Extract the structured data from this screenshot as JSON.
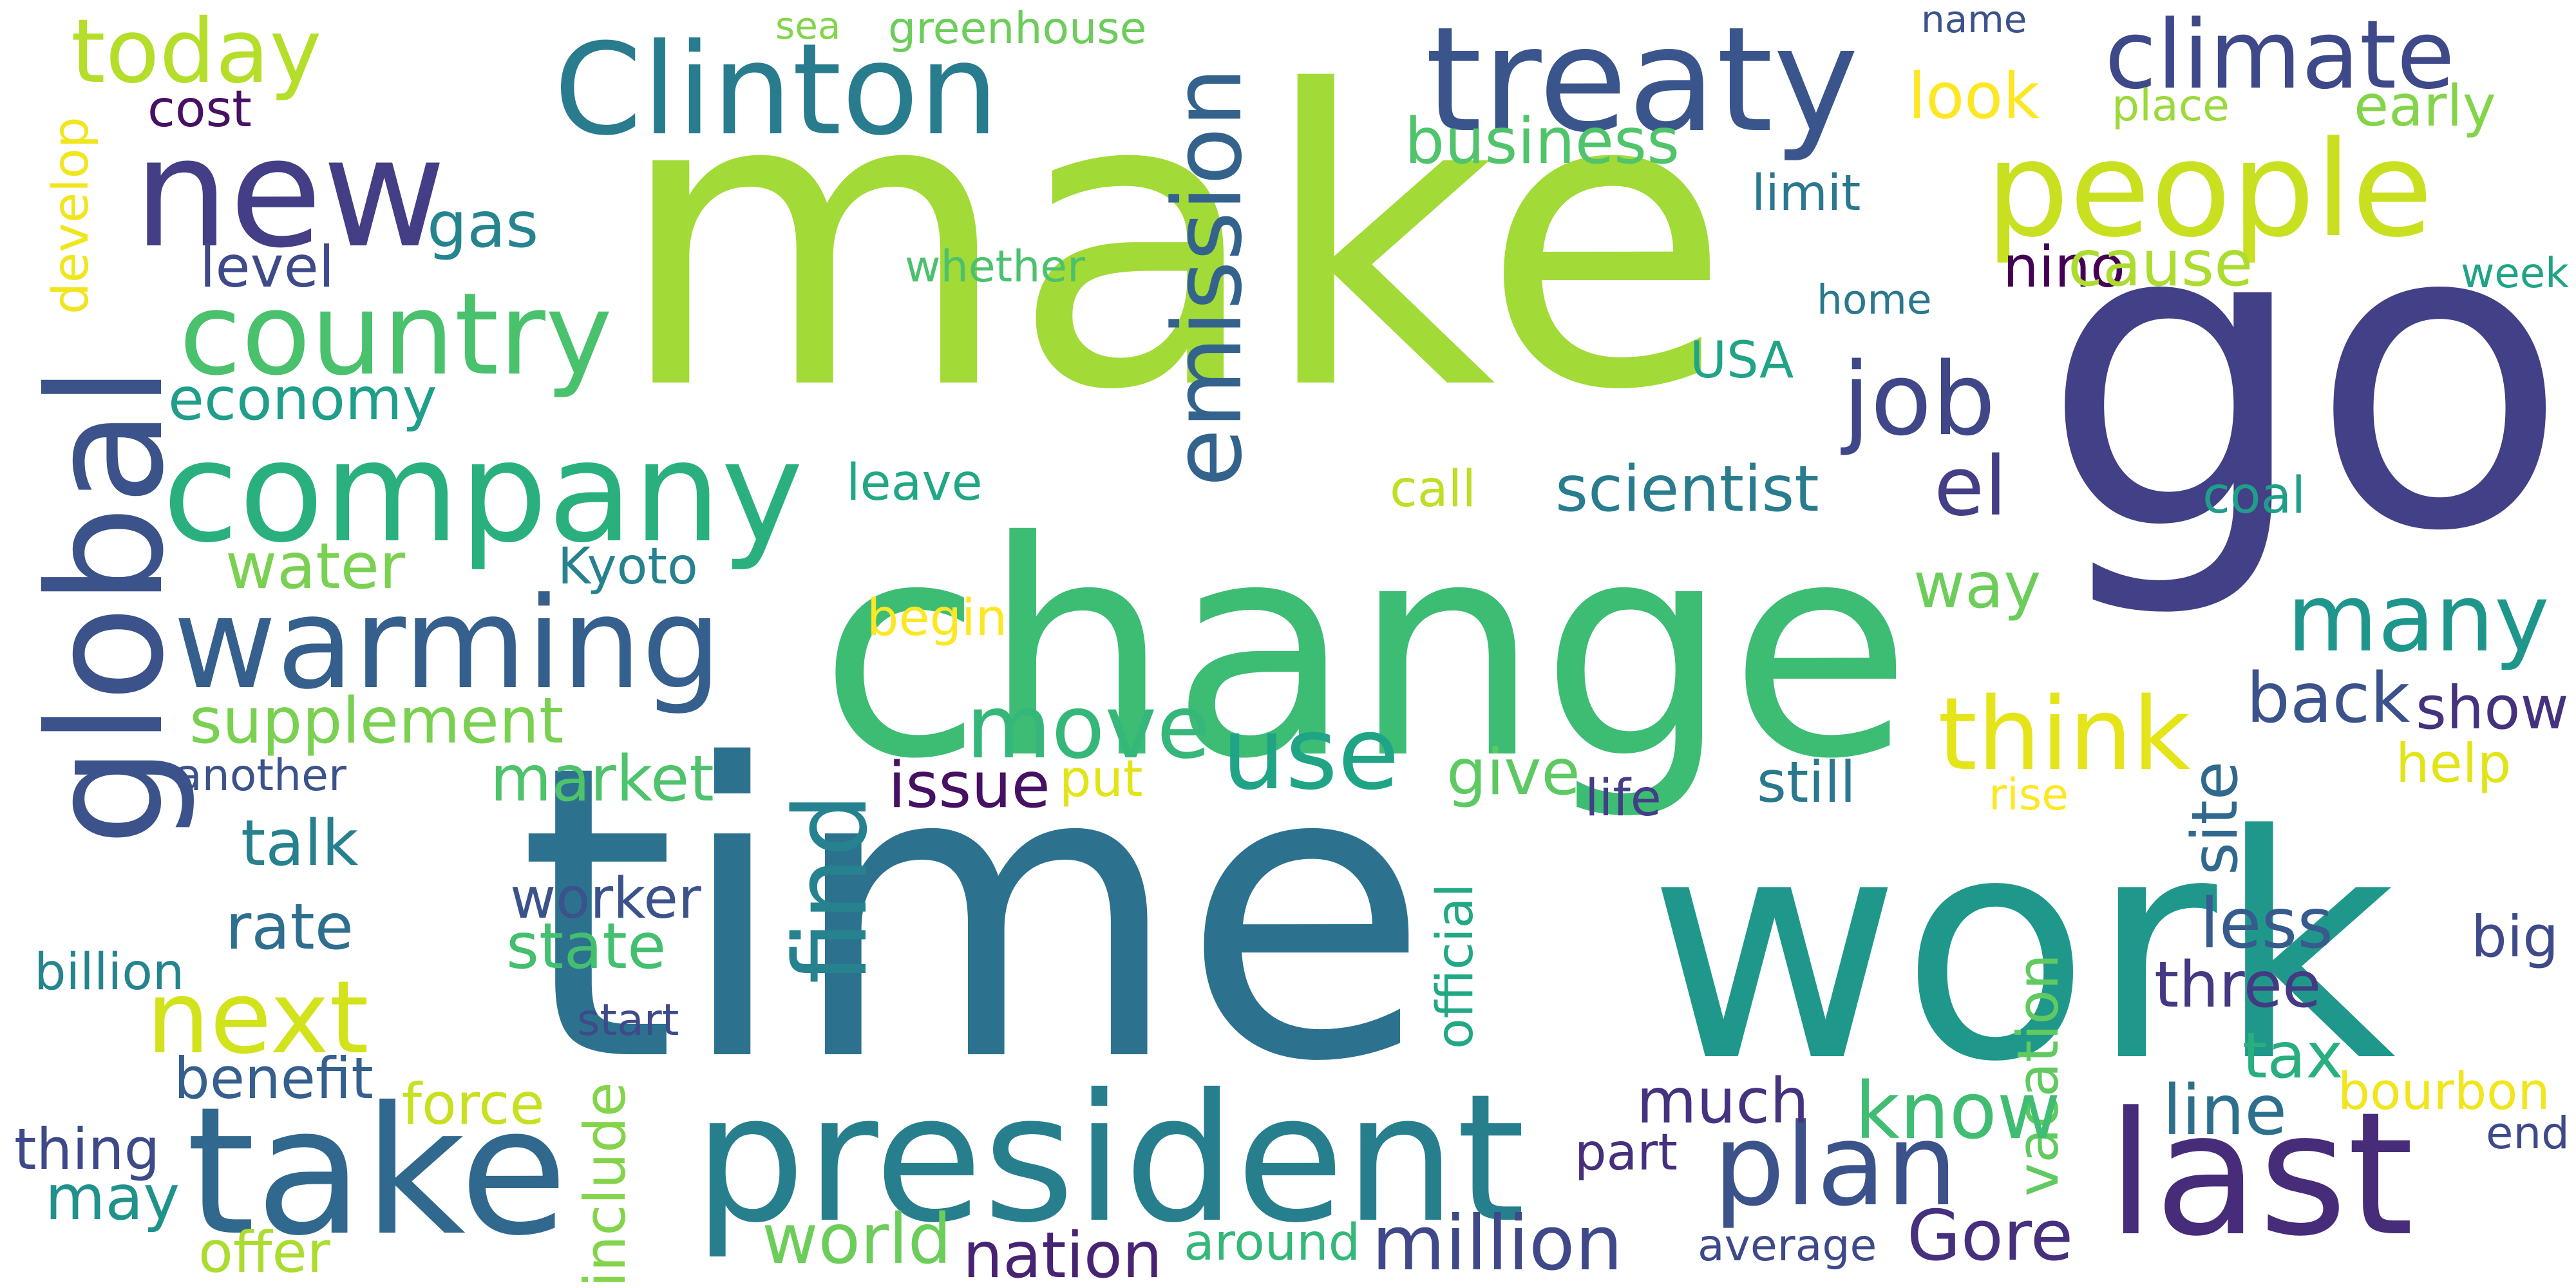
{
  "words": [
    {
      "text": "make",
      "color": "#a2da37"
    },
    {
      "text": "go",
      "color": "#424086"
    },
    {
      "text": "time",
      "color": "#2c728e"
    },
    {
      "text": "work",
      "color": "#1f988b"
    },
    {
      "text": "change",
      "color": "#3dbc74"
    },
    {
      "text": "president",
      "color": "#277f8e"
    },
    {
      "text": "treaty",
      "color": "#39558c"
    },
    {
      "text": "Clinton",
      "color": "#287c8e"
    },
    {
      "text": "new",
      "color": "#433e85"
    },
    {
      "text": "global",
      "color": "#3b528b"
    },
    {
      "text": "take",
      "color": "#31688e"
    },
    {
      "text": "last",
      "color": "#472c7a"
    },
    {
      "text": "people",
      "color": "#c8e020"
    },
    {
      "text": "company",
      "color": "#2ab07f"
    },
    {
      "text": "climate",
      "color": "#3e4989"
    },
    {
      "text": "warming",
      "color": "#355f8d"
    },
    {
      "text": "emission",
      "color": "#33638d"
    },
    {
      "text": "country",
      "color": "#4ac16d"
    },
    {
      "text": "today",
      "color": "#b5de2b"
    },
    {
      "text": "find",
      "color": "#26828e"
    },
    {
      "text": "think",
      "color": "#e5e419"
    },
    {
      "text": "next",
      "color": "#d2e21b"
    },
    {
      "text": "plan",
      "color": "#3b528b"
    },
    {
      "text": "use",
      "color": "#20a486"
    },
    {
      "text": "move",
      "color": "#35b779"
    },
    {
      "text": "job",
      "color": "#3f4788"
    },
    {
      "text": "el",
      "color": "#433e85"
    },
    {
      "text": "many",
      "color": "#1f968b"
    },
    {
      "text": "business",
      "color": "#50c46a"
    },
    {
      "text": "vacation",
      "color": "#60ca60"
    },
    {
      "text": "much",
      "color": "#46337f"
    },
    {
      "text": "million",
      "color": "#3f4889"
    },
    {
      "text": "nation",
      "color": "#482374"
    },
    {
      "text": "Gore",
      "color": "#46307e"
    },
    {
      "text": "world",
      "color": "#6ccd5a"
    },
    {
      "text": "know",
      "color": "#40bd72"
    },
    {
      "text": "line",
      "color": "#2d708e"
    },
    {
      "text": "tax",
      "color": "#29af7f"
    },
    {
      "text": "three",
      "color": "#443983"
    },
    {
      "text": "less",
      "color": "#375b8d"
    },
    {
      "text": "back",
      "color": "#3b528b"
    },
    {
      "text": "show",
      "color": "#46317e"
    },
    {
      "text": "nino",
      "color": "#440154"
    },
    {
      "text": "cause",
      "color": "#addc30"
    },
    {
      "text": "look",
      "color": "#fde725"
    },
    {
      "text": "level",
      "color": "#3e4a89"
    },
    {
      "text": "gas",
      "color": "#25848e"
    },
    {
      "text": "economy",
      "color": "#1f9e89"
    },
    {
      "text": "supplement",
      "color": "#7ad151"
    },
    {
      "text": "market",
      "color": "#4ec36b"
    },
    {
      "text": "issue",
      "color": "#471063"
    },
    {
      "text": "give",
      "color": "#5ec962"
    },
    {
      "text": "still",
      "color": "#2a788e"
    },
    {
      "text": "site",
      "color": "#31688e"
    },
    {
      "text": "state",
      "color": "#44bf70"
    },
    {
      "text": "rate",
      "color": "#2e6e8e"
    },
    {
      "text": "talk",
      "color": "#27808e"
    },
    {
      "text": "scientist",
      "color": "#287c8e"
    },
    {
      "text": "call",
      "color": "#bddf26"
    },
    {
      "text": "leave",
      "color": "#22a785"
    },
    {
      "text": "water",
      "color": "#7ad151"
    },
    {
      "text": "way",
      "color": "#6ccd5a"
    },
    {
      "text": "official",
      "color": "#22a884"
    },
    {
      "text": "include",
      "color": "#84d44b"
    },
    {
      "text": "may",
      "color": "#21918c"
    },
    {
      "text": "benefit",
      "color": "#355f8d"
    },
    {
      "text": "thing",
      "color": "#3e4989"
    },
    {
      "text": "billion",
      "color": "#25858e"
    },
    {
      "text": "start",
      "color": "#3e4a89"
    },
    {
      "text": "worker",
      "color": "#3b528b"
    },
    {
      "text": "another",
      "color": "#3b528b"
    },
    {
      "text": "put",
      "color": "#e2e418"
    },
    {
      "text": "life",
      "color": "#433e85"
    },
    {
      "text": "rise",
      "color": "#fde725"
    },
    {
      "text": "help",
      "color": "#e2e418"
    },
    {
      "text": "big",
      "color": "#3e4a89"
    },
    {
      "text": "bourbon",
      "color": "#f1e51d"
    },
    {
      "text": "end",
      "color": "#3e4a89"
    },
    {
      "text": "part",
      "color": "#46307e"
    },
    {
      "text": "around",
      "color": "#35b779"
    },
    {
      "text": "average",
      "color": "#3e4989"
    },
    {
      "text": "force",
      "color": "#c8e020"
    },
    {
      "text": "offer",
      "color": "#addc30"
    },
    {
      "text": "begin",
      "color": "#fde725"
    },
    {
      "text": "Kyoto",
      "color": "#26828e"
    },
    {
      "text": "whether",
      "color": "#4ac16d"
    },
    {
      "text": "USA",
      "color": "#20a386"
    },
    {
      "text": "home",
      "color": "#2a788e"
    },
    {
      "text": "limit",
      "color": "#2a788e"
    },
    {
      "text": "coal",
      "color": "#1f9e89"
    },
    {
      "text": "week",
      "color": "#20a386"
    },
    {
      "text": "early",
      "color": "#84d44b"
    },
    {
      "text": "place",
      "color": "#9bd93c"
    },
    {
      "text": "name",
      "color": "#3b528b"
    },
    {
      "text": "sea",
      "color": "#84d44b"
    },
    {
      "text": "greenhouse",
      "color": "#6ccd5a"
    },
    {
      "text": "cost",
      "color": "#471063"
    },
    {
      "text": "develop",
      "color": "#f1e51d"
    }
  ]
}
